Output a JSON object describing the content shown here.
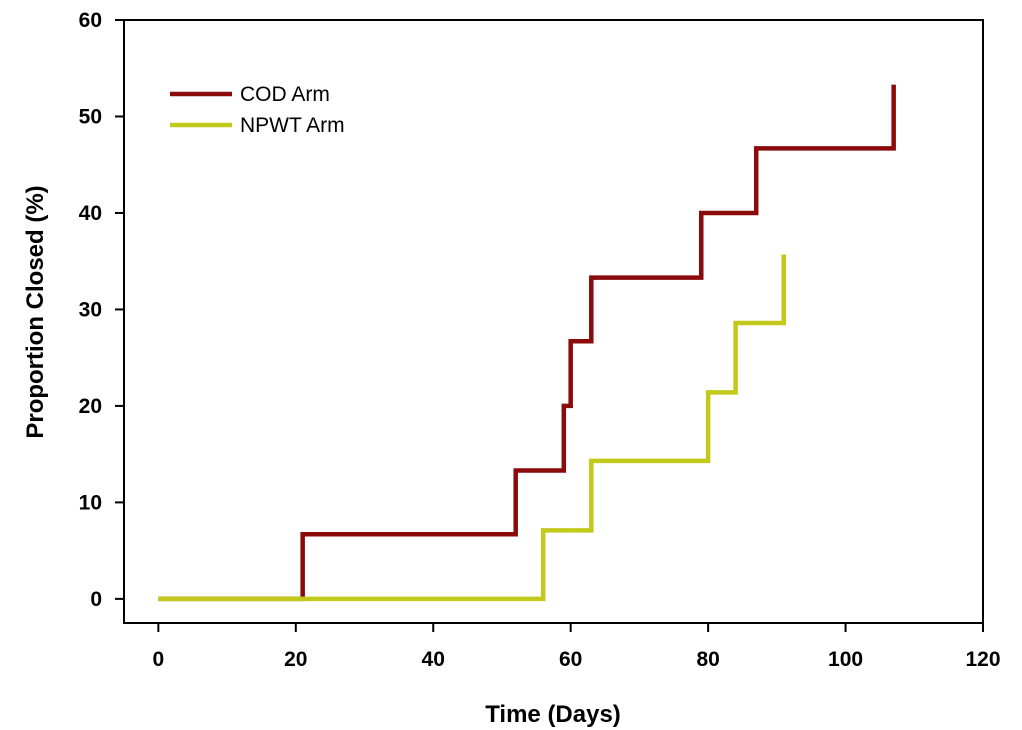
{
  "chart_data": {
    "type": "line",
    "step": true,
    "title": "",
    "xlabel": "Time (Days)",
    "ylabel": "Proportion Closed (%)",
    "xlim": [
      -5,
      120
    ],
    "ylim": [
      -2.5,
      60
    ],
    "xticks": [
      0,
      20,
      40,
      60,
      80,
      100,
      120
    ],
    "yticks": [
      0,
      10,
      20,
      30,
      40,
      50,
      60
    ],
    "grid": false,
    "legend_position": "top-left",
    "series": [
      {
        "name": "COD Arm",
        "color": "#8b0a0a",
        "x": [
          0,
          21,
          52,
          59,
          60,
          63,
          79,
          87,
          107
        ],
        "y": [
          0,
          6.7,
          13.3,
          20,
          26.7,
          33.3,
          40,
          46.7,
          53.3
        ]
      },
      {
        "name": "NPWT Arm",
        "color": "#c3c91a",
        "x": [
          0,
          56,
          63,
          80,
          84,
          91
        ],
        "y": [
          0,
          7.1,
          14.3,
          21.4,
          28.6,
          35.7
        ]
      }
    ]
  }
}
